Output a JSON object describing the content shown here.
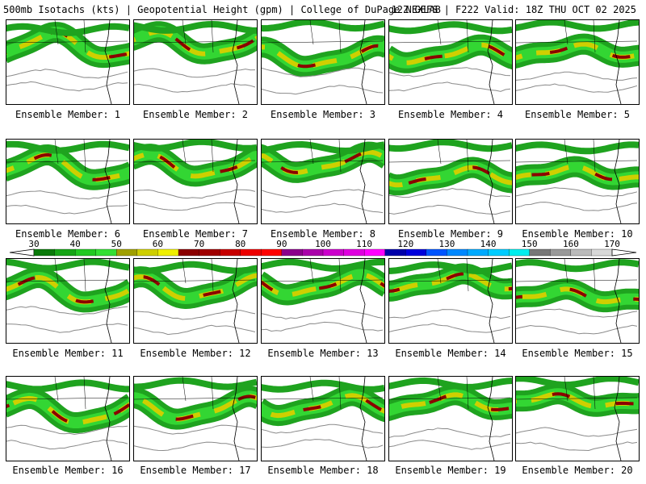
{
  "header": {
    "left": "500mb Isotachs (kts) | Geopotential Height (gpm) | College of DuPage NEXLAB",
    "right": "12Z GEFS | F222 Valid: 18Z THU OCT 02 2025"
  },
  "colorbar": {
    "labels": [
      "30",
      "40",
      "50",
      "60",
      "70",
      "80",
      "90",
      "100",
      "110",
      "120",
      "130",
      "140",
      "150",
      "160",
      "170"
    ],
    "colors": [
      "#0a7a0a",
      "#16a516",
      "#22c922",
      "#33e033",
      "#a0a000",
      "#cfcf00",
      "#f0f000",
      "#8b0000",
      "#a00000",
      "#c80000",
      "#ee0000",
      "#ff0000",
      "#8b008b",
      "#aa00aa",
      "#cc00cc",
      "#e000e0",
      "#ff00ff",
      "#0000aa",
      "#0000dd",
      "#0055ff",
      "#0088ff",
      "#00aaff",
      "#00ccff",
      "#00eeee",
      "#777777",
      "#999999",
      "#bbbbbb",
      "#d8d8d8"
    ]
  },
  "members": [
    {
      "label": "Ensemble Member: 1"
    },
    {
      "label": "Ensemble Member: 2"
    },
    {
      "label": "Ensemble Member: 3"
    },
    {
      "label": "Ensemble Member: 4"
    },
    {
      "label": "Ensemble Member: 5"
    },
    {
      "label": "Ensemble Member: 6"
    },
    {
      "label": "Ensemble Member: 7"
    },
    {
      "label": "Ensemble Member: 8"
    },
    {
      "label": "Ensemble Member: 9"
    },
    {
      "label": "Ensemble Member: 10"
    },
    {
      "label": "Ensemble Member: 11"
    },
    {
      "label": "Ensemble Member: 12"
    },
    {
      "label": "Ensemble Member: 13"
    },
    {
      "label": "Ensemble Member: 14"
    },
    {
      "label": "Ensemble Member: 15"
    },
    {
      "label": "Ensemble Member: 16"
    },
    {
      "label": "Ensemble Member: 17"
    },
    {
      "label": "Ensemble Member: 18"
    },
    {
      "label": "Ensemble Member: 19"
    },
    {
      "label": "Ensemble Member: 20"
    }
  ],
  "palette": {
    "jet_outer": "#1fa31f",
    "jet_mid": "#33d633",
    "jet_core_yellow": "#cfcf00",
    "jet_core_red": "#8b0000",
    "height_contour": "#8a8a8a",
    "borders": "#000000"
  }
}
